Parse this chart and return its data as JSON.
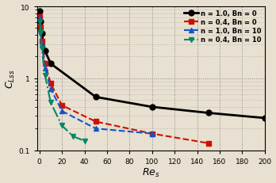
{
  "title": "",
  "xlabel": "$Re_s$",
  "ylabel": "$C_{Lss}$",
  "xlim": [
    -2,
    200
  ],
  "ylim": [
    0.1,
    10
  ],
  "background_color": "#e8e0d0",
  "series": [
    {
      "label": "n = 1.0, Bn = 0",
      "color": "black",
      "linestyle": "-",
      "linewidth": 2.0,
      "marker": "o",
      "markersize": 5,
      "x": [
        0.5,
        1,
        2,
        5,
        10,
        50,
        100,
        150,
        200
      ],
      "y": [
        8.5,
        6.2,
        4.2,
        2.4,
        1.6,
        0.55,
        0.4,
        0.33,
        0.28
      ]
    },
    {
      "label": "n = 0.4, Bn = 0",
      "color": "#cc1100",
      "linestyle": "--",
      "linewidth": 1.5,
      "marker": "s",
      "markersize": 5,
      "x": [
        0.5,
        1,
        2,
        5,
        10,
        20,
        50,
        100,
        150
      ],
      "y": [
        7.2,
        5.2,
        3.3,
        1.6,
        0.85,
        0.42,
        0.25,
        0.17,
        0.125
      ]
    },
    {
      "label": "n = 1.0, Bn = 10",
      "color": "#1155cc",
      "linestyle": "--",
      "linewidth": 1.5,
      "marker": "^",
      "markersize": 5,
      "x": [
        0.5,
        1,
        2,
        5,
        10,
        20,
        50,
        100
      ],
      "y": [
        6.8,
        4.8,
        3.0,
        1.4,
        0.72,
        0.35,
        0.2,
        0.17
      ]
    },
    {
      "label": "n = 0.4, Bn = 10",
      "color": "#008866",
      "linestyle": "-.",
      "linewidth": 1.5,
      "marker": "v",
      "markersize": 5,
      "x": [
        0.5,
        1,
        2,
        5,
        10,
        20,
        30,
        40
      ],
      "y": [
        6.2,
        4.3,
        2.6,
        1.1,
        0.46,
        0.22,
        0.155,
        0.135
      ]
    }
  ],
  "xticks": [
    0,
    20,
    40,
    60,
    80,
    100,
    120,
    140,
    160,
    180,
    200
  ],
  "xticklabels": [
    "0",
    "20",
    "40",
    "60",
    "80",
    "100",
    "120",
    "140",
    "160",
    "180",
    "200"
  ],
  "yticks": [
    0.1,
    1,
    10
  ],
  "yticklabels": [
    "0.1",
    "1",
    "10"
  ]
}
